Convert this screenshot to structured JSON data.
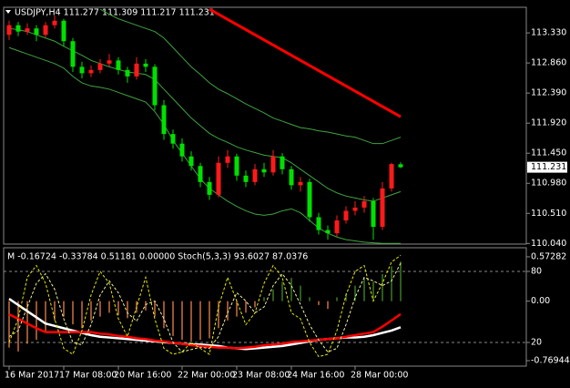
{
  "chart_data": [
    {
      "type": "candlestick",
      "title": "USDJPY,H4  111.277 111.309 111.217 111.231",
      "categories": [
        "16 Mar 2017",
        null,
        null,
        null,
        null,
        null,
        "17 Mar 08:00",
        null,
        null,
        null,
        null,
        null,
        "20 Mar 16:00",
        null,
        null,
        null,
        null,
        null,
        null,
        "22 Mar 00:00",
        null,
        null,
        null,
        null,
        null,
        "23 Mar 08:00",
        null,
        null,
        null,
        null,
        null,
        "24 Mar 16:00",
        null,
        null,
        null,
        null,
        null,
        null,
        "28 Mar 00:00",
        null,
        null,
        null,
        null,
        null
      ],
      "open": [
        113.3,
        113.45,
        113.35,
        113.4,
        113.3,
        113.45,
        113.52,
        113.2,
        112.8,
        112.7,
        112.75,
        112.85,
        112.9,
        112.75,
        112.65,
        112.85,
        112.8,
        112.2,
        111.75,
        111.6,
        111.4,
        111.25,
        111.0,
        110.8,
        111.3,
        111.4,
        111.1,
        111.0,
        111.2,
        111.15,
        111.4,
        111.2,
        110.95,
        111.0,
        110.45,
        110.25,
        110.2,
        110.4,
        110.55,
        110.6,
        110.7,
        110.3,
        110.9,
        111.277
      ],
      "high": [
        113.52,
        113.5,
        113.48,
        113.45,
        113.5,
        113.6,
        113.55,
        113.25,
        112.88,
        112.82,
        112.92,
        113.0,
        112.95,
        112.8,
        112.95,
        112.92,
        112.84,
        112.28,
        111.82,
        111.68,
        111.48,
        111.3,
        111.08,
        111.4,
        111.5,
        111.44,
        111.18,
        111.28,
        111.3,
        111.5,
        111.45,
        111.25,
        111.08,
        111.05,
        110.52,
        110.32,
        110.48,
        110.62,
        110.7,
        110.78,
        110.75,
        111.0,
        111.3,
        111.309
      ],
      "low": [
        113.22,
        113.28,
        113.3,
        113.2,
        113.26,
        113.4,
        113.12,
        112.72,
        112.62,
        112.64,
        112.7,
        112.8,
        112.68,
        112.55,
        112.6,
        112.72,
        112.12,
        111.66,
        111.52,
        111.32,
        111.18,
        110.92,
        110.72,
        110.76,
        111.22,
        111.02,
        110.92,
        110.95,
        111.08,
        111.1,
        111.12,
        110.88,
        110.85,
        110.38,
        110.18,
        110.1,
        110.15,
        110.35,
        110.48,
        110.52,
        110.1,
        110.25,
        110.85,
        111.217
      ],
      "close": [
        113.45,
        113.35,
        113.4,
        113.3,
        113.45,
        113.52,
        113.2,
        112.8,
        112.7,
        112.75,
        112.85,
        112.9,
        112.75,
        112.65,
        112.85,
        112.8,
        112.2,
        111.75,
        111.6,
        111.4,
        111.25,
        111.0,
        110.8,
        111.3,
        111.4,
        111.1,
        111.0,
        111.2,
        111.15,
        111.4,
        111.2,
        110.95,
        111.0,
        110.45,
        110.25,
        110.2,
        110.4,
        110.55,
        110.6,
        110.7,
        110.3,
        110.9,
        111.28,
        111.231
      ],
      "up_color": "#ff1a1a",
      "down_color": "#00e000",
      "lines": [
        {
          "color": "#ff0000",
          "width": 3,
          "values": [
            null,
            null,
            null,
            null,
            null,
            null,
            null,
            null,
            null,
            null,
            null,
            null,
            null,
            null,
            null,
            null,
            null,
            null,
            null,
            null,
            null,
            null,
            113.7,
            113.62,
            113.54,
            113.46,
            113.38,
            113.3,
            113.22,
            113.14,
            113.06,
            112.98,
            112.9,
            112.82,
            112.74,
            112.66,
            112.58,
            112.5,
            112.42,
            112.34,
            112.26,
            112.18,
            112.1,
            112.02
          ]
        },
        {
          "color": "#3fa33f",
          "width": 1,
          "values": [
            null,
            null,
            null,
            null,
            null,
            null,
            null,
            null,
            null,
            null,
            113.7,
            113.62,
            113.55,
            113.5,
            113.45,
            113.4,
            113.35,
            113.25,
            113.1,
            112.95,
            112.8,
            112.68,
            112.55,
            112.45,
            112.38,
            112.3,
            112.22,
            112.15,
            112.08,
            112.0,
            111.95,
            111.9,
            111.85,
            111.83,
            111.8,
            111.78,
            111.75,
            111.72,
            111.7,
            111.65,
            111.6,
            111.6,
            111.65,
            111.7
          ]
        },
        {
          "color": "#3fa33f",
          "width": 1,
          "values": [
            113.4,
            113.38,
            113.35,
            113.3,
            113.25,
            113.2,
            113.12,
            113.05,
            112.98,
            112.9,
            112.85,
            112.8,
            112.76,
            112.72,
            112.7,
            112.68,
            112.6,
            112.45,
            112.3,
            112.15,
            112.0,
            111.88,
            111.76,
            111.68,
            111.62,
            111.55,
            111.5,
            111.46,
            111.42,
            111.4,
            111.38,
            111.3,
            111.2,
            111.1,
            111.0,
            110.9,
            110.83,
            110.78,
            110.75,
            110.72,
            110.7,
            110.75,
            110.8,
            110.85
          ]
        },
        {
          "color": "#3fa33f",
          "width": 1,
          "values": [
            113.1,
            113.05,
            113.0,
            112.95,
            112.9,
            112.85,
            112.78,
            112.65,
            112.55,
            112.5,
            112.48,
            112.45,
            112.4,
            112.35,
            112.3,
            112.25,
            112.1,
            111.9,
            111.65,
            111.45,
            111.25,
            111.05,
            110.9,
            110.8,
            110.7,
            110.62,
            110.55,
            110.5,
            110.48,
            110.5,
            110.55,
            110.58,
            110.52,
            110.4,
            110.28,
            110.2,
            110.14,
            110.1,
            110.08,
            110.06,
            110.05,
            110.04,
            110.04,
            110.04
          ]
        }
      ],
      "price_marker": {
        "value": 111.231,
        "label": "111.231"
      },
      "ylim": [
        110.03,
        113.73
      ],
      "yticks": [
        {
          "value": 113.33,
          "label": "113.330"
        },
        {
          "value": 112.86,
          "label": "112.860"
        },
        {
          "value": 112.39,
          "label": "112.390"
        },
        {
          "value": 111.92,
          "label": "111.920"
        },
        {
          "value": 111.45,
          "label": "111.450"
        },
        {
          "value": 110.98,
          "label": "110.980"
        },
        {
          "value": 110.51,
          "label": "110.510"
        },
        {
          "value": 110.04,
          "label": "110.040"
        }
      ]
    },
    {
      "type": "macd_stoch",
      "title": "M -0.16724 -0.33784 0.51181 0.00000  Stoch(5,3,3) 93.6027 87.0376",
      "histogram": {
        "positive_color": "#4a9a2a",
        "negative_color": "#ff8c50",
        "values": [
          -0.6,
          -0.65,
          -0.55,
          -0.5,
          -0.4,
          -0.25,
          -0.2,
          -0.3,
          -0.35,
          -0.25,
          -0.2,
          -0.15,
          -0.18,
          -0.22,
          -0.15,
          -0.12,
          -0.2,
          -0.35,
          -0.45,
          -0.5,
          -0.52,
          -0.5,
          -0.48,
          -0.35,
          -0.25,
          -0.2,
          -0.15,
          -0.08,
          0.05,
          0.15,
          0.25,
          0.3,
          0.2,
          0.05,
          -0.05,
          -0.1,
          0.05,
          0.1,
          0.2,
          0.3,
          0.25,
          0.35,
          0.45,
          0.51181
        ]
      },
      "series": [
        {
          "color": "#ffffff",
          "width": 2.5,
          "values": [
            0.03,
            -0.05,
            -0.13,
            -0.21,
            -0.29,
            -0.32,
            -0.35,
            -0.38,
            -0.41,
            -0.44,
            -0.46,
            -0.47,
            -0.48,
            -0.49,
            -0.5,
            -0.51,
            -0.52,
            -0.53,
            -0.54,
            -0.55,
            -0.56,
            -0.56,
            -0.57,
            -0.58,
            -0.6,
            -0.61,
            -0.62,
            -0.61,
            -0.6,
            -0.59,
            -0.58,
            -0.56,
            -0.54,
            -0.52,
            -0.5,
            -0.49,
            -0.48,
            -0.47,
            -0.47,
            -0.46,
            -0.44,
            -0.41,
            -0.38,
            -0.33784
          ]
        },
        {
          "color": "#ff0000",
          "width": 2.5,
          "values": [
            -0.17,
            -0.23,
            -0.29,
            -0.35,
            -0.4,
            -0.4,
            -0.4,
            -0.4,
            -0.4,
            -0.4,
            -0.42,
            -0.43,
            -0.45,
            -0.46,
            -0.48,
            -0.49,
            -0.51,
            -0.52,
            -0.54,
            -0.55,
            -0.57,
            -0.58,
            -0.59,
            -0.6,
            -0.6,
            -0.61,
            -0.6,
            -0.59,
            -0.57,
            -0.56,
            -0.55,
            -0.53,
            -0.52,
            -0.51,
            -0.5,
            -0.49,
            -0.48,
            -0.46,
            -0.44,
            -0.42,
            -0.4,
            -0.33,
            -0.25,
            -0.16724
          ]
        },
        {
          "color": "#e8e800",
          "width": 1,
          "dash": true,
          "axis": "y2",
          "values": [
            20,
            40,
            75,
            85,
            70,
            40,
            15,
            10,
            30,
            60,
            80,
            70,
            40,
            25,
            50,
            75,
            40,
            15,
            10,
            12,
            20,
            15,
            10,
            50,
            75,
            55,
            35,
            45,
            70,
            85,
            75,
            45,
            40,
            20,
            8,
            10,
            30,
            60,
            80,
            85,
            55,
            70,
            88,
            93.6027
          ]
        },
        {
          "color": "#f0f0a0",
          "width": 1,
          "dash": true,
          "axis": "y2",
          "values": [
            25,
            30,
            50,
            70,
            78,
            65,
            40,
            20,
            18,
            35,
            60,
            72,
            62,
            45,
            38,
            52,
            55,
            40,
            20,
            12,
            14,
            16,
            15,
            25,
            45,
            62,
            55,
            45,
            50,
            68,
            78,
            68,
            52,
            35,
            22,
            12,
            15,
            35,
            58,
            75,
            72,
            68,
            72,
            87.0376
          ]
        }
      ],
      "ylim": [
        -0.84,
        0.69
      ],
      "yticks": [
        0.57282,
        {
          "value": 0,
          "label": "0.00"
        },
        -0.76944
      ],
      "y2lim": [
        0,
        100
      ],
      "y2ticks": [
        80,
        20
      ]
    }
  ]
}
